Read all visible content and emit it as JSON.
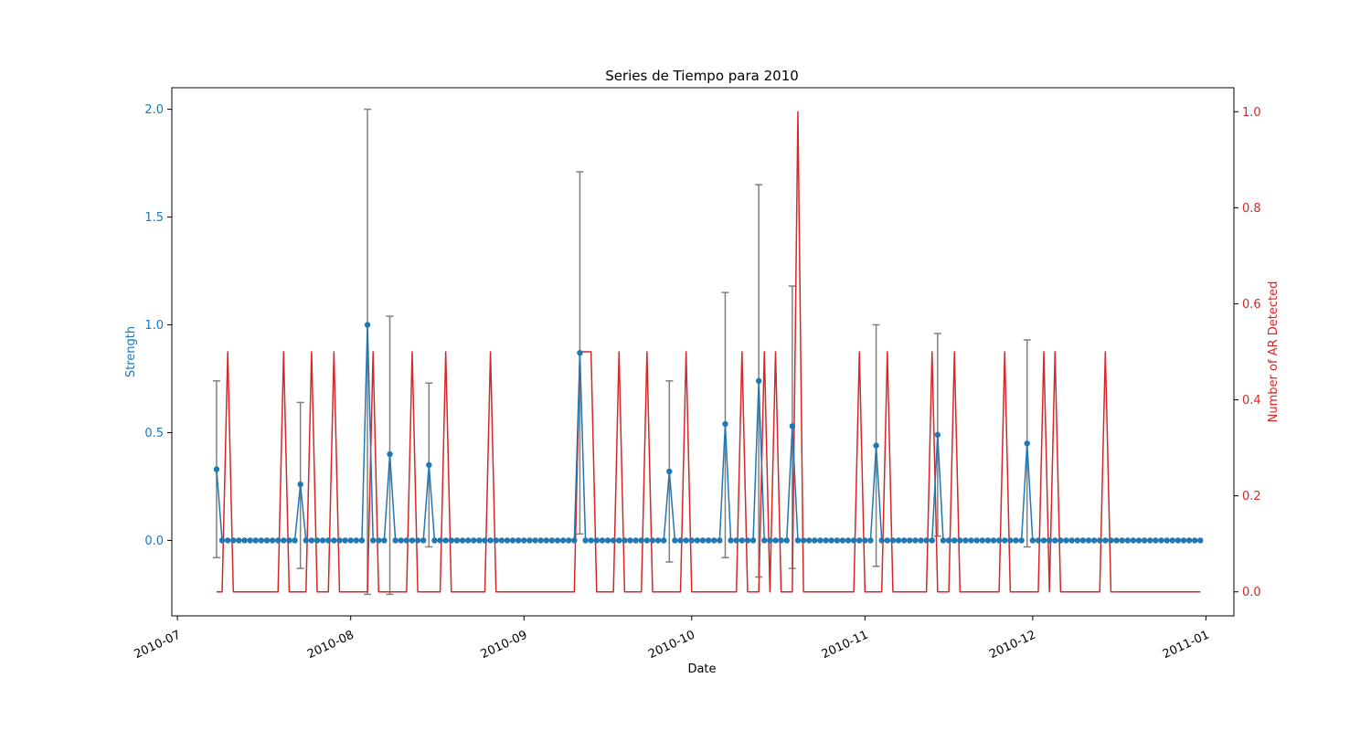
{
  "chart_data": {
    "type": "line",
    "title": "Series de Tiempo para 2010",
    "xlabel": "Date",
    "x_ticks": [
      "2010-07",
      "2010-08",
      "2010-09",
      "2010-10",
      "2010-11",
      "2010-12",
      "2011-01"
    ],
    "xlim": [
      "2010-06-30",
      "2011-01-06"
    ],
    "grid": false,
    "left_axis": {
      "label": "Strength",
      "color": "#1f77b4",
      "ylim": [
        -0.35,
        2.1
      ],
      "ticks": [
        "0.0",
        "0.5",
        "1.0",
        "1.5",
        "2.0"
      ]
    },
    "right_axis": {
      "label": "Number of AR Detected",
      "color": "#d62728",
      "ylim": [
        -0.05,
        1.05
      ],
      "ticks": [
        "0.0",
        "0.2",
        "0.4",
        "0.6",
        "0.8",
        "1.0"
      ]
    },
    "strength_series": {
      "start": "2010-07-08",
      "end": "2010-12-31",
      "baseline": 0.0,
      "marker": "circle",
      "color": "#1f77b4",
      "peaks": [
        {
          "date": "2010-07-08",
          "value": 0.33,
          "err_low": -0.08,
          "err_high": 0.74
        },
        {
          "date": "2010-07-23",
          "value": 0.26,
          "err_low": -0.13,
          "err_high": 0.64
        },
        {
          "date": "2010-08-04",
          "value": 1.0,
          "err_low": -0.25,
          "err_high": 2.0
        },
        {
          "date": "2010-08-08",
          "value": 0.4,
          "err_low": -0.25,
          "err_high": 1.04
        },
        {
          "date": "2010-08-15",
          "value": 0.35,
          "err_low": -0.03,
          "err_high": 0.73
        },
        {
          "date": "2010-09-11",
          "value": 0.87,
          "err_low": 0.03,
          "err_high": 1.71
        },
        {
          "date": "2010-09-27",
          "value": 0.32,
          "err_low": -0.1,
          "err_high": 0.74
        },
        {
          "date": "2010-10-07",
          "value": 0.54,
          "err_low": -0.08,
          "err_high": 1.15
        },
        {
          "date": "2010-10-13",
          "value": 0.74,
          "err_low": -0.17,
          "err_high": 1.65
        },
        {
          "date": "2010-10-19",
          "value": 0.53,
          "err_low": -0.13,
          "err_high": 1.18
        },
        {
          "date": "2010-11-03",
          "value": 0.44,
          "err_low": -0.12,
          "err_high": 1.0
        },
        {
          "date": "2010-11-14",
          "value": 0.49,
          "err_low": 0.02,
          "err_high": 0.96
        },
        {
          "date": "2010-11-30",
          "value": 0.45,
          "err_low": -0.03,
          "err_high": 0.93
        }
      ]
    },
    "ar_series": {
      "start": "2010-07-08",
      "end": "2010-12-31",
      "color": "#d62728",
      "events": [
        {
          "date": "2010-07-10",
          "value": 0.5
        },
        {
          "date": "2010-07-20",
          "value": 0.5
        },
        {
          "date": "2010-07-25",
          "value": 0.5
        },
        {
          "date": "2010-07-29",
          "value": 0.5
        },
        {
          "date": "2010-08-05",
          "value": 0.5
        },
        {
          "date": "2010-08-12",
          "value": 0.5
        },
        {
          "date": "2010-08-18",
          "value": 0.5
        },
        {
          "date": "2010-08-26",
          "value": 0.5
        },
        {
          "date": "2010-09-11",
          "value": 0.5
        },
        {
          "date": "2010-09-12",
          "value": 0.5
        },
        {
          "date": "2010-09-13",
          "value": 0.5
        },
        {
          "date": "2010-09-18",
          "value": 0.5
        },
        {
          "date": "2010-09-23",
          "value": 0.5
        },
        {
          "date": "2010-09-30",
          "value": 0.5
        },
        {
          "date": "2010-10-10",
          "value": 0.5
        },
        {
          "date": "2010-10-14",
          "value": 0.5
        },
        {
          "date": "2010-10-16",
          "value": 0.5
        },
        {
          "date": "2010-10-20",
          "value": 1.0
        },
        {
          "date": "2010-10-31",
          "value": 0.5
        },
        {
          "date": "2010-11-05",
          "value": 0.5
        },
        {
          "date": "2010-11-13",
          "value": 0.5
        },
        {
          "date": "2010-11-17",
          "value": 0.5
        },
        {
          "date": "2010-11-26",
          "value": 0.5
        },
        {
          "date": "2010-12-03",
          "value": 0.5
        },
        {
          "date": "2010-12-05",
          "value": 0.5
        },
        {
          "date": "2010-12-14",
          "value": 0.5
        }
      ]
    }
  }
}
